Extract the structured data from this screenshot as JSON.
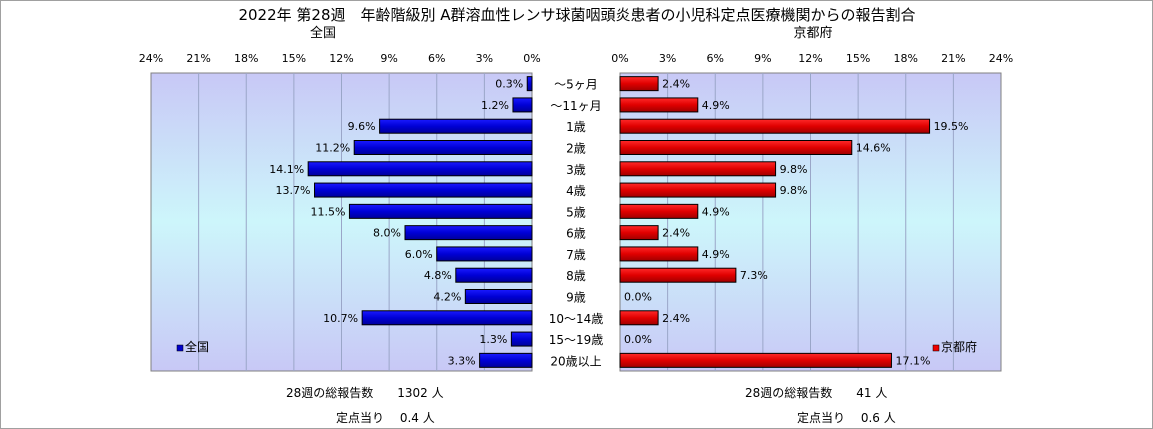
{
  "chart_data": {
    "type": "bar",
    "title": "2022年 第28週　年齢階級別 A群溶血性レンサ球菌咽頭炎患者の小児科定点医療機関からの報告割合",
    "categories": [
      "～5ヶ月",
      "～11ヶ月",
      "1歳",
      "2歳",
      "3歳",
      "4歳",
      "5歳",
      "6歳",
      "7歳",
      "8歳",
      "9歳",
      "10～14歳",
      "15～19歳",
      "20歳以上"
    ],
    "xlim": [
      0,
      24
    ],
    "ticks": [
      "0%",
      "3%",
      "6%",
      "9%",
      "12%",
      "15%",
      "18%",
      "21%",
      "24%"
    ],
    "grid": true,
    "panels": [
      {
        "name": "全国",
        "values": [
          0.3,
          1.2,
          9.6,
          11.2,
          14.1,
          13.7,
          11.5,
          8.0,
          6.0,
          4.8,
          4.2,
          10.7,
          1.3,
          3.3
        ],
        "labels": [
          "0.3%",
          "1.2%",
          "9.6%",
          "11.2%",
          "14.1%",
          "13.7%",
          "11.5%",
          "8.0%",
          "6.0%",
          "4.8%",
          "4.2%",
          "10.7%",
          "1.3%",
          "3.3%"
        ],
        "color": "#0000cc",
        "legend": "全国",
        "legend_position": "bottom-left"
      },
      {
        "name": "京都府",
        "values": [
          2.4,
          4.9,
          19.5,
          14.6,
          9.8,
          9.8,
          4.9,
          2.4,
          4.9,
          7.3,
          0.0,
          2.4,
          0.0,
          17.1
        ],
        "labels": [
          "2.4%",
          "4.9%",
          "19.5%",
          "14.6%",
          "9.8%",
          "9.8%",
          "4.9%",
          "2.4%",
          "4.9%",
          "7.3%",
          "0.0%",
          "2.4%",
          "0.0%",
          "17.1%"
        ],
        "color": "#ee0000",
        "legend": "京都府",
        "legend_position": "bottom-right"
      }
    ]
  },
  "stats": {
    "left_total": "28週の総報告数　　1302 人",
    "left_per": "定点当り　 0.4 人",
    "right_total": "28週の総報告数　　41 人",
    "right_per": "定点当り　 0.6 人"
  }
}
